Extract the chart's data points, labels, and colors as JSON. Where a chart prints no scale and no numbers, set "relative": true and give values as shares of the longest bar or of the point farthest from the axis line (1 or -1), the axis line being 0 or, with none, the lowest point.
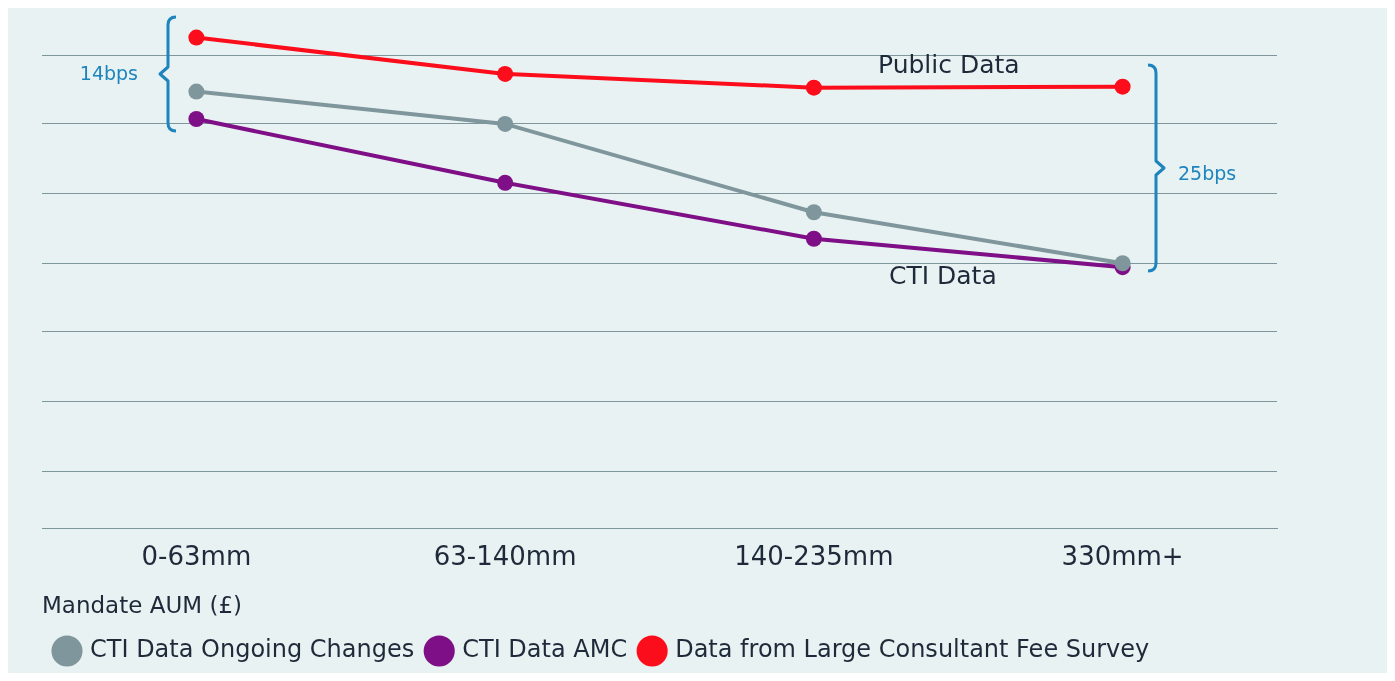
{
  "chart_data": {
    "type": "line",
    "relative": true,
    "xlabel": "Mandate AUM (£)",
    "categories": [
      "0-63mm",
      "63-140mm",
      "140-235mm",
      "330mm+"
    ],
    "series": [
      {
        "name": "CTI Data Ongoing Changes",
        "color": "#7f979c",
        "values": [
          0.89,
          0.824,
          0.644,
          0.54
        ]
      },
      {
        "name": "CTI Data AMC",
        "color": "#7e0f86",
        "values": [
          0.834,
          0.704,
          0.59,
          0.532
        ]
      },
      {
        "name": "Data from Large Consultant Fee Survey",
        "color": "#fc0d1b",
        "values": [
          1,
          0.926,
          0.898,
          0.9
        ]
      }
    ],
    "annotations": [
      "14bps",
      "25bps",
      "Public Data",
      "CTI Data"
    ],
    "grid": "y",
    "legend": "bottom",
    "marker": "circle",
    "line_style": "solid"
  }
}
